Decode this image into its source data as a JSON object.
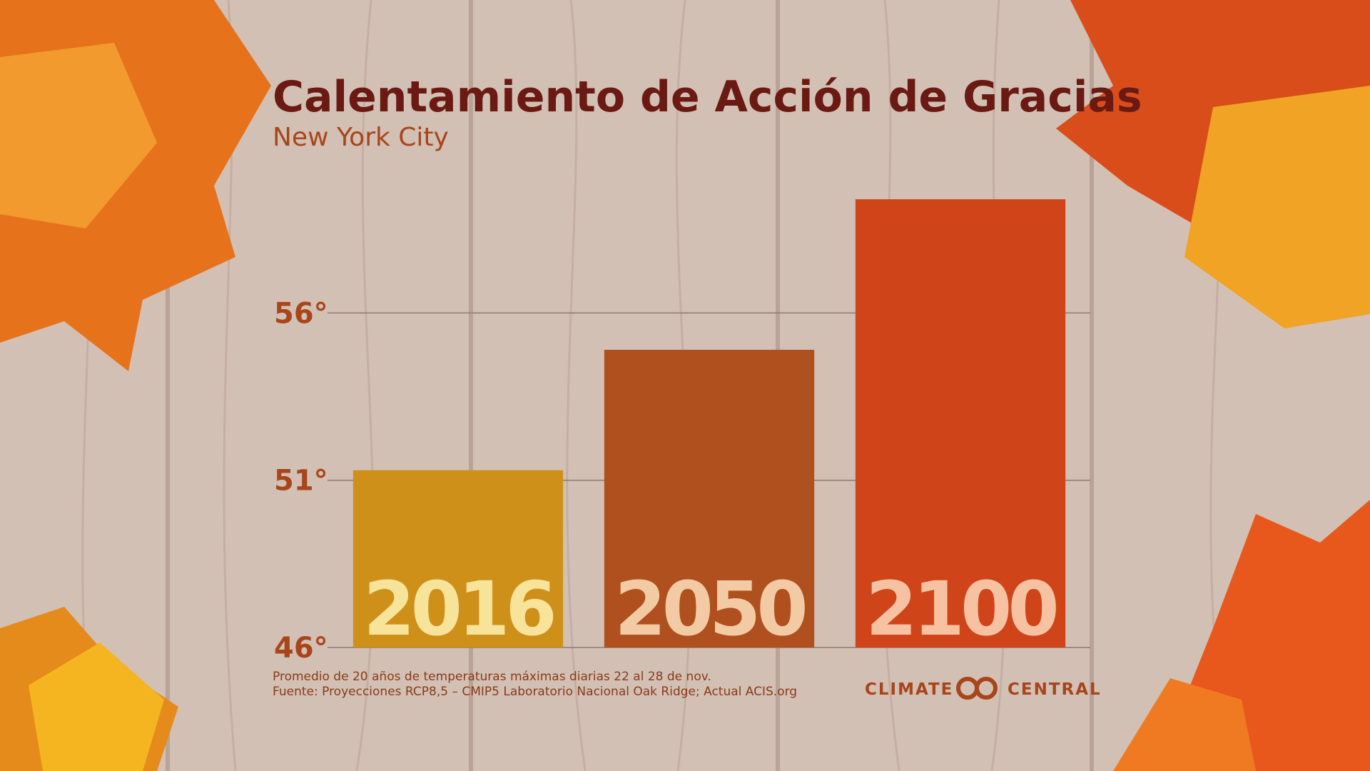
{
  "chart_data": {
    "type": "bar",
    "title": "Calentamiento de Acción de Gracias",
    "subtitle": "New York City",
    "categories": [
      "2016",
      "2050",
      "2100"
    ],
    "values": [
      51.3,
      54.9,
      59.4
    ],
    "colors": [
      "#cf901a",
      "#b0501e",
      "#cf4519"
    ],
    "label_colors": [
      "#f7e39a",
      "#f2cba4",
      "#f6c2a2"
    ],
    "ylim": [
      46,
      60
    ],
    "yticks": [
      {
        "value": 46,
        "label": "46°"
      },
      {
        "value": 51,
        "label": "51°"
      },
      {
        "value": 56,
        "label": "56°"
      }
    ],
    "grid": true,
    "notes": [
      "Promedio de 20 años de temperaturas máximas diarias 22 al 28 de nov.",
      "Fuente: Proyecciones RCP8,5 – CMIP5 Laboratorio Nacional Oak Ridge; Actual ACIS.org"
    ],
    "logo": [
      "CLIMATE",
      "CENTRAL"
    ]
  }
}
